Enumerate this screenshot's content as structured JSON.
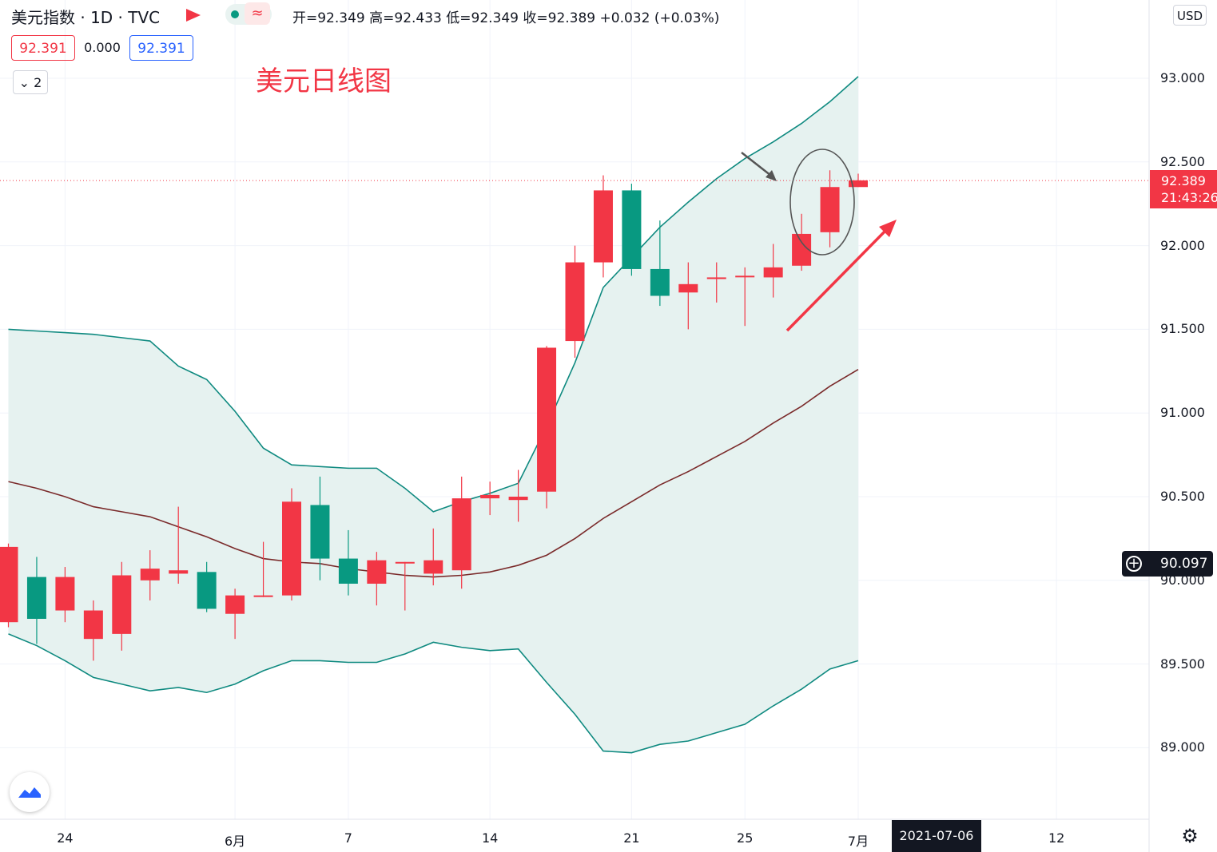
{
  "header": {
    "title": "美元指数 · 1D · TVC",
    "wave_symbol": "≈",
    "ohlc_text": "开=92.349 高=92.433 低=92.349 收=92.389 +0.032 (+0.03%)",
    "sell_price": "92.391",
    "spread": "0.000",
    "buy_price": "92.391",
    "collapse_label": "2"
  },
  "annotation": "美元日线图",
  "currency": "USD",
  "last_price": "92.389",
  "countdown": "21:43:26",
  "crosshair_price": "90.097",
  "crosshair_date": "2021-07-06",
  "colors": {
    "up": "#f23645",
    "down": "#089981",
    "band": "#0f8a80",
    "band_fill": "#e6f2f0",
    "middle": "#7a2a2a",
    "annotation": "#f23645"
  },
  "icons": [
    "flag-icon",
    "chevron-down-icon",
    "crosshair-icon",
    "tradingview-logo-icon",
    "settings-gear-icon"
  ],
  "chart_data": {
    "type": "candlestick",
    "title": "美元日线图",
    "ylim": [
      88.6,
      93.42
    ],
    "y_ticks": [
      "89.000",
      "89.500",
      "90.000",
      "90.500",
      "91.000",
      "91.500",
      "92.000",
      "92.500",
      "93.000"
    ],
    "x_labels": [
      {
        "label": "24",
        "i": 2
      },
      {
        "label": "6月",
        "i": 8
      },
      {
        "label": "7",
        "i": 12
      },
      {
        "label": "14",
        "i": 17
      },
      {
        "label": "21",
        "i": 22
      },
      {
        "label": "25",
        "i": 26
      },
      {
        "label": "7月",
        "i": 30
      },
      {
        "label": "12",
        "i": 37
      }
    ],
    "candles": [
      {
        "o": 89.75,
        "h": 90.22,
        "l": 89.72,
        "c": 90.2
      },
      {
        "o": 90.02,
        "h": 90.14,
        "l": 89.62,
        "c": 89.77
      },
      {
        "o": 89.82,
        "h": 90.08,
        "l": 89.75,
        "c": 90.02
      },
      {
        "o": 89.65,
        "h": 89.88,
        "l": 89.52,
        "c": 89.82
      },
      {
        "o": 89.68,
        "h": 90.11,
        "l": 89.58,
        "c": 90.03
      },
      {
        "o": 90.0,
        "h": 90.18,
        "l": 89.88,
        "c": 90.07
      },
      {
        "o": 90.04,
        "h": 90.44,
        "l": 89.98,
        "c": 90.06
      },
      {
        "o": 90.05,
        "h": 90.11,
        "l": 89.81,
        "c": 89.83
      },
      {
        "o": 89.8,
        "h": 89.95,
        "l": 89.65,
        "c": 89.91
      },
      {
        "o": 89.91,
        "h": 90.23,
        "l": 89.9,
        "c": 89.91
      },
      {
        "o": 89.91,
        "h": 90.55,
        "l": 89.88,
        "c": 90.47
      },
      {
        "o": 90.45,
        "h": 90.62,
        "l": 90.0,
        "c": 90.13
      },
      {
        "o": 90.13,
        "h": 90.3,
        "l": 89.91,
        "c": 89.98
      },
      {
        "o": 89.98,
        "h": 90.17,
        "l": 89.85,
        "c": 90.12
      },
      {
        "o": 90.11,
        "h": 90.11,
        "l": 89.82,
        "c": 90.11
      },
      {
        "o": 90.04,
        "h": 90.31,
        "l": 89.97,
        "c": 90.12
      },
      {
        "o": 90.06,
        "h": 90.62,
        "l": 89.95,
        "c": 90.49
      },
      {
        "o": 90.49,
        "h": 90.59,
        "l": 90.39,
        "c": 90.51
      },
      {
        "o": 90.48,
        "h": 90.66,
        "l": 90.35,
        "c": 90.5
      },
      {
        "o": 90.53,
        "h": 91.4,
        "l": 90.43,
        "c": 91.39
      },
      {
        "o": 91.43,
        "h": 92.0,
        "l": 91.33,
        "c": 91.9
      },
      {
        "o": 91.9,
        "h": 92.42,
        "l": 91.81,
        "c": 92.33
      },
      {
        "o": 92.33,
        "h": 92.37,
        "l": 91.82,
        "c": 91.86
      },
      {
        "o": 91.86,
        "h": 92.15,
        "l": 91.64,
        "c": 91.7
      },
      {
        "o": 91.72,
        "h": 91.9,
        "l": 91.5,
        "c": 91.77
      },
      {
        "o": 91.81,
        "h": 91.9,
        "l": 91.66,
        "c": 91.81
      },
      {
        "o": 91.82,
        "h": 91.87,
        "l": 91.52,
        "c": 91.82
      },
      {
        "o": 91.81,
        "h": 92.01,
        "l": 91.69,
        "c": 91.87
      },
      {
        "o": 91.88,
        "h": 92.19,
        "l": 91.85,
        "c": 92.07
      },
      {
        "o": 92.08,
        "h": 92.45,
        "l": 91.99,
        "c": 92.35
      },
      {
        "o": 92.35,
        "h": 92.43,
        "l": 92.35,
        "c": 92.39
      }
    ],
    "bollinger": {
      "upper": [
        91.5,
        91.49,
        91.48,
        91.47,
        91.45,
        91.43,
        91.28,
        91.2,
        91.01,
        90.79,
        90.69,
        90.68,
        90.67,
        90.67,
        90.55,
        90.41,
        90.47,
        90.52,
        90.58,
        90.92,
        91.3,
        91.75,
        91.93,
        92.11,
        92.26,
        92.4,
        92.52,
        92.62,
        92.73,
        92.86,
        93.01
      ],
      "middle": [
        90.59,
        90.55,
        90.5,
        90.44,
        90.41,
        90.38,
        90.32,
        90.26,
        90.19,
        90.13,
        90.11,
        90.1,
        90.07,
        90.05,
        90.03,
        90.02,
        90.03,
        90.05,
        90.09,
        90.15,
        90.25,
        90.37,
        90.47,
        90.57,
        90.65,
        90.74,
        90.83,
        90.94,
        91.04,
        91.16,
        91.26
      ],
      "lower": [
        89.68,
        89.61,
        89.52,
        89.42,
        89.38,
        89.34,
        89.36,
        89.33,
        89.38,
        89.46,
        89.52,
        89.52,
        89.51,
        89.51,
        89.56,
        89.63,
        89.6,
        89.58,
        89.59,
        89.39,
        89.2,
        88.98,
        88.97,
        89.02,
        89.04,
        89.09,
        89.14,
        89.25,
        89.35,
        89.47,
        89.52
      ]
    },
    "last_close": 92.389,
    "crosshair_y": 90.097
  }
}
